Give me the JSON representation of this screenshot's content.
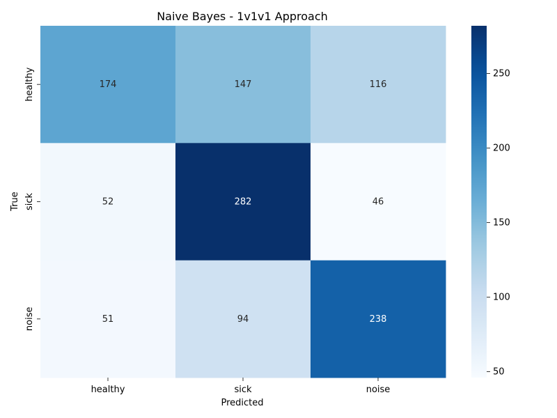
{
  "chart_data": {
    "type": "heatmap",
    "title": "Naive Bayes - 1v1v1 Approach",
    "xlabel": "Predicted",
    "ylabel": "True",
    "x_categories": [
      "healthy",
      "sick",
      "noise"
    ],
    "y_categories": [
      "healthy",
      "sick",
      "noise"
    ],
    "values": [
      [
        174,
        147,
        116
      ],
      [
        52,
        282,
        46
      ],
      [
        51,
        94,
        238
      ]
    ],
    "colormap": "Blues",
    "color_range": [
      46,
      282
    ],
    "colorbar_ticks": [
      50,
      100,
      150,
      200,
      250
    ]
  },
  "colors": {
    "blues": [
      "#f7fbff",
      "#deebf7",
      "#c6dbef",
      "#9ecae1",
      "#6baed6",
      "#4292c6",
      "#2171b5",
      "#08519c",
      "#08306b"
    ]
  }
}
